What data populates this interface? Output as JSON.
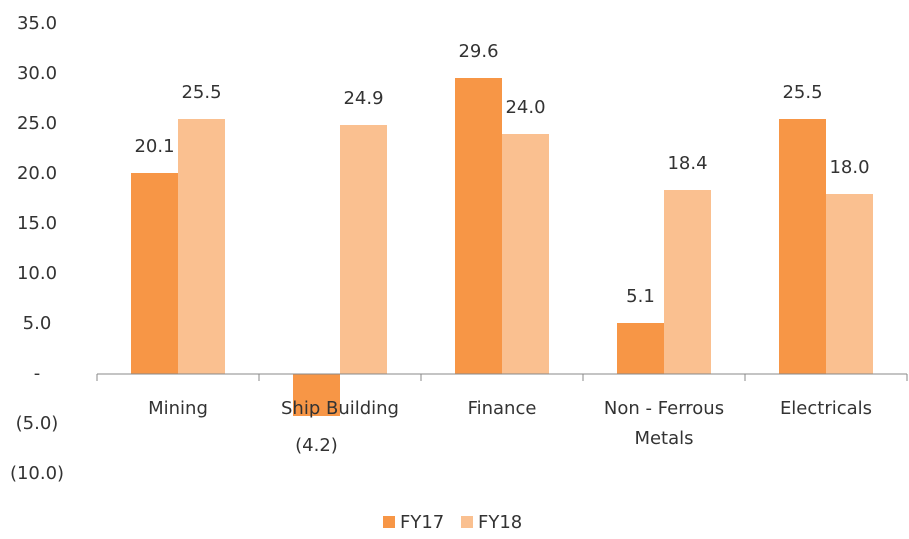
{
  "chart_data": {
    "type": "bar",
    "categories": [
      "Mining",
      "Ship Building",
      "Finance",
      "Non - Ferrous Metals",
      "Electricals"
    ],
    "series": [
      {
        "name": "FY17",
        "color": "#f79646",
        "values": [
          20.1,
          -4.2,
          29.6,
          5.1,
          25.5
        ],
        "value_labels": [
          "20.1",
          "(4.2)",
          "29.6",
          "5.1",
          "25.5"
        ]
      },
      {
        "name": "FY18",
        "color": "#fac090",
        "values": [
          25.5,
          24.9,
          24.0,
          18.4,
          18.0
        ],
        "value_labels": [
          "25.5",
          "24.9",
          "24.0",
          "18.4",
          "18.0"
        ]
      }
    ],
    "ylim": [
      -10,
      35
    ],
    "yticks": [
      {
        "value": -10,
        "label": "(10.0)"
      },
      {
        "value": -5,
        "label": "(5.0)"
      },
      {
        "value": 0,
        "label": "-"
      },
      {
        "value": 5,
        "label": "5.0"
      },
      {
        "value": 10,
        "label": "10.0"
      },
      {
        "value": 15,
        "label": "15.0"
      },
      {
        "value": 20,
        "label": "20.0"
      },
      {
        "value": 25,
        "label": "25.0"
      },
      {
        "value": 30,
        "label": "30.0"
      },
      {
        "value": 35,
        "label": "35.0"
      }
    ],
    "grid": false,
    "legend": "bottom"
  }
}
